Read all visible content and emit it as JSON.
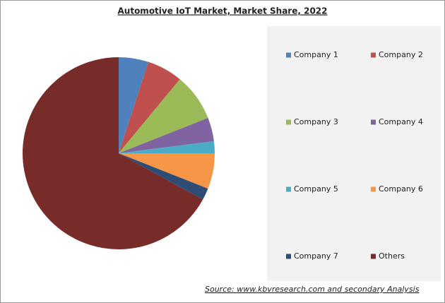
{
  "chart_data": {
    "type": "pie",
    "title": "Automotive IoT Market, Market Share, 2022",
    "source": "Source:  www.kbvresearch.com  and secondary Analysis",
    "categories": [
      "Company 1",
      "Company 2",
      "Company 3",
      "Company 4",
      "Company 5",
      "Company 6",
      "Company 7",
      "Others"
    ],
    "values": [
      5,
      6,
      8,
      4,
      2,
      6,
      2,
      67
    ],
    "colors": [
      "#4f81bd",
      "#c0504d",
      "#9bbb59",
      "#8064a2",
      "#4bacc6",
      "#f79646",
      "#2c4d75",
      "#772c2a"
    ]
  }
}
